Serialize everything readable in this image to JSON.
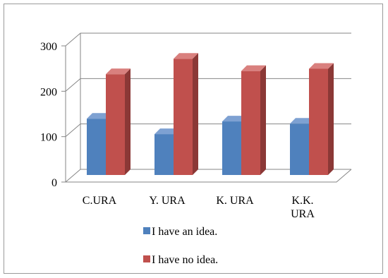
{
  "chart_data": {
    "type": "bar",
    "categories": [
      "C.URA",
      "Y. URA",
      "K. URA",
      "K.K. URA"
    ],
    "category_lines": [
      [
        "C.URA"
      ],
      [
        "Y. URA"
      ],
      [
        "K. URA"
      ],
      [
        "K.K.",
        "URA"
      ]
    ],
    "series": [
      {
        "name": "I have an idea.",
        "values": [
          124,
          90,
          118,
          113
        ],
        "color": "#4f81bd",
        "side_color": "#385d8a",
        "top_color": "#7ea1d2"
      },
      {
        "name": "I have no idea.",
        "values": [
          222,
          256,
          229,
          234
        ],
        "color": "#c0504d",
        "side_color": "#8b3836",
        "top_color": "#d9807e"
      }
    ],
    "ylim": [
      0,
      300
    ],
    "yticks": [
      "0",
      "100",
      "200",
      "300"
    ],
    "grid": true,
    "legend_position": "bottom"
  }
}
